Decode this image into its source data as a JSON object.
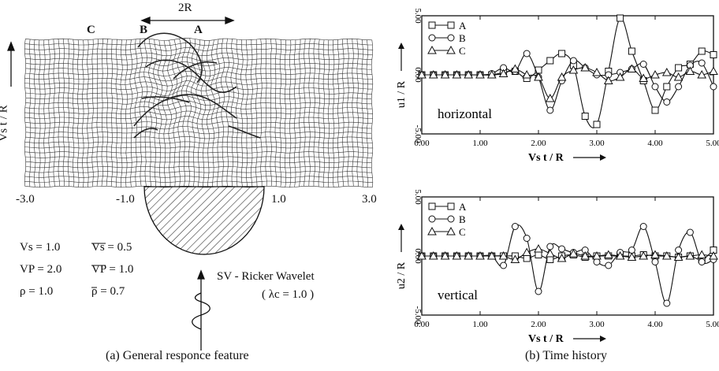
{
  "left_panel": {
    "points": {
      "c": "C",
      "b": "B",
      "a": "A"
    },
    "width_label": "2R",
    "axis_label": "Vs t / R",
    "x_ticks": [
      "-3.0",
      "-1.0",
      "1.0",
      "3.0"
    ],
    "params": {
      "vs": "Vs = 1.0",
      "vs_bar": "Vs = 0.5",
      "vp": "VP = 2.0",
      "vp_bar": "VP = 1.0",
      "rho": "ρ = 1.0",
      "rho_bar": "ρ = 0.7"
    },
    "wave_label": "SV - Ricker Wavelet",
    "wave_param": "( λc = 1.0 )",
    "caption": "(a) General responce feature"
  },
  "right_panel": {
    "caption": "(b) Time history",
    "xlabel": "Vs t / R"
  },
  "chart_data": [
    {
      "type": "line",
      "label": "horizontal",
      "ylabel": "u1 / R",
      "xlabel": "Vs t / R",
      "xlim": [
        0,
        5
      ],
      "ylim": [
        -5,
        5
      ],
      "x_ticks": [
        "0.00",
        "1.00",
        "2.00",
        "3.00",
        "4.00",
        "5.00"
      ],
      "y_ticks": [
        "5.00",
        "0.00",
        "-5.00"
      ],
      "legend": [
        "A",
        "B",
        "C"
      ],
      "x": [
        0.0,
        0.2,
        0.4,
        0.6,
        0.8,
        1.0,
        1.2,
        1.4,
        1.6,
        1.8,
        2.0,
        2.2,
        2.4,
        2.6,
        2.8,
        3.0,
        3.2,
        3.4,
        3.6,
        3.8,
        4.0,
        4.2,
        4.4,
        4.6,
        4.8,
        5.0
      ],
      "series": [
        {
          "name": "A",
          "marker": "square",
          "values": [
            0,
            0,
            0,
            0,
            0,
            0,
            0,
            0.2,
            0.3,
            -0.3,
            0.4,
            1.2,
            1.8,
            0.8,
            -3.5,
            -4.2,
            0.3,
            4.8,
            2.0,
            -0.5,
            -3.0,
            -1.0,
            0.6,
            0.9,
            2.0,
            1.7
          ]
        },
        {
          "name": "B",
          "marker": "circle",
          "values": [
            0,
            0,
            0,
            0,
            0,
            0,
            0.1,
            0.6,
            0.3,
            1.8,
            -0.2,
            -3.0,
            -0.5,
            1.2,
            0.6,
            0.0,
            0.0,
            0.2,
            0.5,
            0.9,
            -1.0,
            -2.3,
            -1.0,
            0.8,
            1.0,
            -1.0
          ]
        },
        {
          "name": "C",
          "marker": "triangle",
          "values": [
            0,
            0,
            0,
            0,
            0,
            0,
            0,
            0.1,
            0.5,
            0.0,
            -0.2,
            -2.0,
            -0.2,
            0.4,
            0.6,
            0.2,
            -0.5,
            -0.2,
            0.5,
            -0.3,
            0.0,
            0.2,
            -0.2,
            0.3,
            0.0,
            0.3
          ]
        }
      ]
    },
    {
      "type": "line",
      "label": "vertical",
      "ylabel": "u2 / R",
      "xlabel": "Vs t / R",
      "xlim": [
        0,
        5
      ],
      "ylim": [
        -5,
        5
      ],
      "x_ticks": [
        "0.00",
        "1.00",
        "2.00",
        "3.00",
        "4.00",
        "5.00"
      ],
      "y_ticks": [
        "5.00",
        "0.00",
        "-5.00"
      ],
      "legend": [
        "A",
        "B",
        "C"
      ],
      "x": [
        0.0,
        0.2,
        0.4,
        0.6,
        0.8,
        1.0,
        1.2,
        1.4,
        1.6,
        1.8,
        2.0,
        2.2,
        2.4,
        2.6,
        2.8,
        3.0,
        3.2,
        3.4,
        3.6,
        3.8,
        4.0,
        4.2,
        4.4,
        4.6,
        4.8,
        5.0
      ],
      "series": [
        {
          "name": "A",
          "marker": "square",
          "values": [
            0,
            0,
            0,
            0,
            0,
            0,
            0,
            0,
            0,
            -0.2,
            0.1,
            -0.3,
            0.0,
            0.1,
            -0.1,
            0.0,
            0.0,
            0.0,
            0.0,
            0.1,
            0.0,
            0.0,
            -0.1,
            0.0,
            -0.3,
            0.5
          ]
        },
        {
          "name": "B",
          "marker": "circle",
          "values": [
            0,
            0,
            0,
            0,
            0,
            0,
            0,
            -0.8,
            2.5,
            1.5,
            -3.0,
            0.8,
            0.6,
            0.3,
            0.5,
            -0.5,
            -0.8,
            0.3,
            0.5,
            2.5,
            -0.5,
            -4.0,
            0.5,
            2.0,
            -0.5,
            -0.3
          ]
        },
        {
          "name": "C",
          "marker": "triangle",
          "values": [
            0,
            0,
            0,
            0,
            0,
            0,
            0,
            0,
            -0.3,
            0.3,
            0.6,
            0.2,
            -0.2,
            0.2,
            0.0,
            0.0,
            0.1,
            0.0,
            -0.1,
            0.0,
            0.1,
            0.0,
            -0.1,
            0.0,
            0.1,
            0.0
          ]
        }
      ]
    }
  ]
}
